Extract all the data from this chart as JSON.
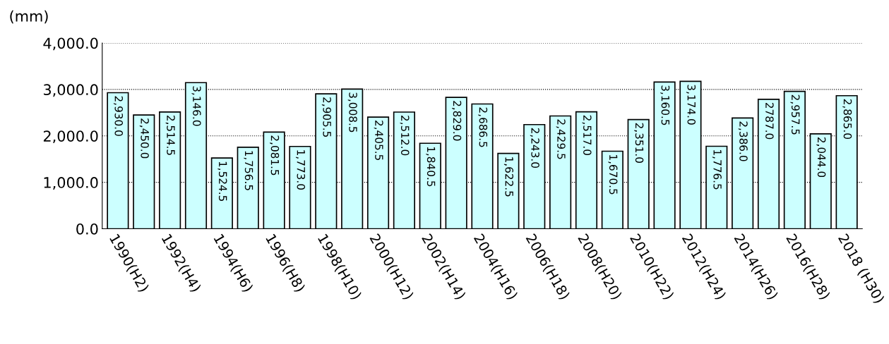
{
  "chart_data": {
    "type": "bar",
    "ylabel": "(mm)",
    "categories": [
      "1990(H2)",
      null,
      "1992(H4)",
      null,
      "1994(H6)",
      null,
      "1996(H8)",
      null,
      "1998(H10)",
      null,
      "2000(H12)",
      null,
      "2002(H14)",
      null,
      "2004(H16)",
      null,
      "2006(H18)",
      null,
      "2008(H20)",
      null,
      "2010(H22)",
      null,
      "2012(H24)",
      null,
      "2014(H26)",
      null,
      "2016(H28)",
      null,
      "2018 (H30)"
    ],
    "values": [
      2930.0,
      2450.0,
      2514.5,
      3146.0,
      1524.5,
      1756.5,
      2081.5,
      1773.0,
      2905.5,
      3008.5,
      2405.5,
      2512.0,
      1840.5,
      2829.0,
      2686.5,
      1622.5,
      2243.0,
      2429.5,
      2517.0,
      1670.5,
      2351.0,
      3160.5,
      3174.0,
      1776.5,
      2386.0,
      2787.0,
      2957.5,
      2044.0,
      2865.0
    ],
    "value_labels": [
      "2,930.0",
      "2,450.0",
      "2,514.5",
      "3,146.0",
      "1,524.5",
      "1,756.5",
      "2,081.5",
      "1,773.0",
      "2,905.5",
      "3,008.5",
      "2,405.5",
      "2,512.0",
      "1,840.5",
      "2,829.0",
      "2,686.5",
      "1,622.5",
      "2,243.0",
      "2,429.5",
      "2,517.0",
      "1,670.5",
      "2,351.0",
      "3,160.5",
      "3,174.0",
      "1,776.5",
      "2,386.0",
      "2787.0",
      "2,957.5",
      "2,044.0",
      "2,865.0"
    ],
    "color": "#ccffff",
    "ylim": [
      0,
      4000
    ],
    "yticks": [
      {
        "value": 0,
        "label": "0.0"
      },
      {
        "value": 1000,
        "label": "1,000.0"
      },
      {
        "value": 2000,
        "label": "2,000.0"
      },
      {
        "value": 3000,
        "label": "3,000.0"
      },
      {
        "value": 4000,
        "label": "4,000.0"
      }
    ],
    "grid": "y"
  }
}
